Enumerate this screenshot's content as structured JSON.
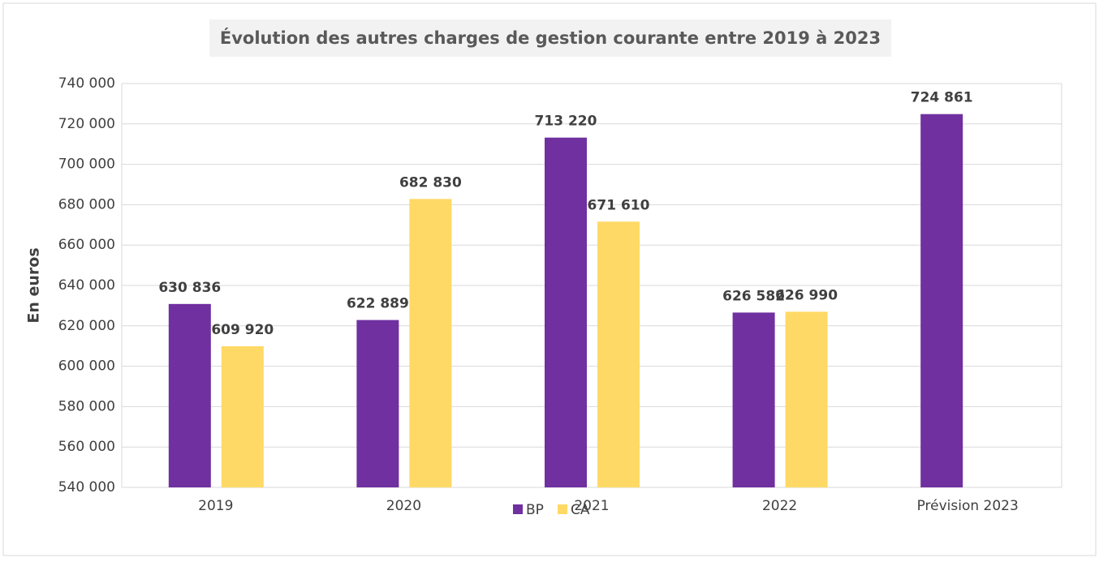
{
  "chart_data": {
    "type": "bar",
    "title": "Évolution des autres charges de gestion courante entre 2019 à 2023",
    "y_label": "En euros",
    "categories": [
      "2019",
      "2020",
      "2021",
      "2022",
      "Prévision 2023"
    ],
    "series": [
      {
        "name": "BP",
        "color": "#7030a0",
        "values": [
          630836,
          622889,
          713220,
          626582,
          724861
        ],
        "value_labels": [
          "630 836",
          "622 889",
          "713 220",
          "626 582",
          "724 861"
        ]
      },
      {
        "name": "CA",
        "color": "#ffd966",
        "values": [
          609920,
          682830,
          671610,
          626990,
          null
        ],
        "value_labels": [
          "609 920",
          "682 830",
          "671 610",
          "626 990",
          null
        ]
      }
    ],
    "ylim": [
      540000,
      740000
    ],
    "yticks": [
      {
        "value": 540000,
        "label": "540 000"
      },
      {
        "value": 560000,
        "label": "560 000"
      },
      {
        "value": 580000,
        "label": "580 000"
      },
      {
        "value": 600000,
        "label": "600 000"
      },
      {
        "value": 620000,
        "label": "620 000"
      },
      {
        "value": 640000,
        "label": "640 000"
      },
      {
        "value": 660000,
        "label": "660 000"
      },
      {
        "value": 680000,
        "label": "680 000"
      },
      {
        "value": 700000,
        "label": "700 000"
      },
      {
        "value": 720000,
        "label": "720 000"
      },
      {
        "value": 740000,
        "label": "740 000"
      }
    ],
    "grid": true,
    "legend": "bottom"
  }
}
